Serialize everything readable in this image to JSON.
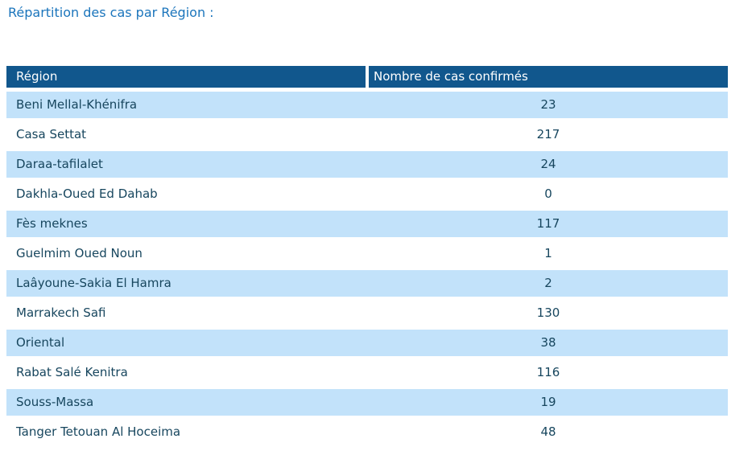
{
  "page": {
    "title": "Répartition des cas par Région :"
  },
  "table": {
    "columns": [
      "Région",
      "Nombre de cas confirmés"
    ],
    "rows": [
      {
        "region": "Beni Mellal-Khénifra",
        "confirmed": "23"
      },
      {
        "region": "Casa Settat",
        "confirmed": "217"
      },
      {
        "region": "Daraa-tafilalet",
        "confirmed": "24"
      },
      {
        "region": "Dakhla-Oued Ed Dahab",
        "confirmed": "0"
      },
      {
        "region": "Fès meknes",
        "confirmed": "117"
      },
      {
        "region": "Guelmim Oued Noun",
        "confirmed": "1"
      },
      {
        "region": "Laâyoune-Sakia El Hamra",
        "confirmed": "2"
      },
      {
        "region": "Marrakech Safi",
        "confirmed": "130"
      },
      {
        "region": "Oriental",
        "confirmed": "38"
      },
      {
        "region": "Rabat Salé Kenitra",
        "confirmed": "116"
      },
      {
        "region": "Souss-Massa",
        "confirmed": "19"
      },
      {
        "region": "Tanger Tetouan Al Hoceima",
        "confirmed": "48"
      }
    ]
  },
  "colors": {
    "title": "#1b75bc",
    "header_bg": "#11578d",
    "header_text": "#ffffff",
    "row_alt_bg": "#c2e2fa",
    "row_bg": "#ffffff",
    "cell_text": "#17465e"
  }
}
